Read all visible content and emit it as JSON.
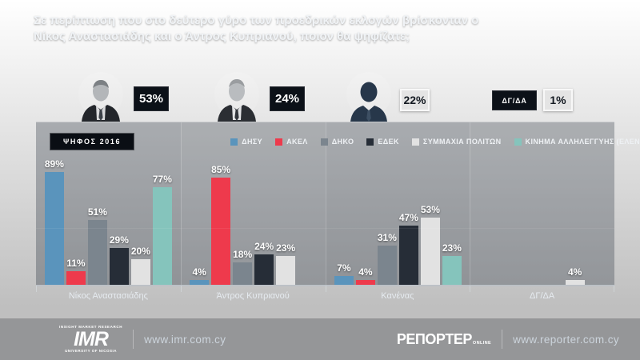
{
  "title": {
    "line1": "Σε περίπτωση που στο δεύτερο γύρο των προεδρικών εκλογών βρίσκονταν ο",
    "line2": "Νίκος Αναστασιάδης και ο Άντρος Κυπριανού, ποιον θα ψηφίζατε;"
  },
  "summary": {
    "items": [
      {
        "value": "53%",
        "style": "dark",
        "avatar": "male-portrait"
      },
      {
        "value": "24%",
        "style": "dark",
        "avatar": "male-portrait"
      },
      {
        "value": "22%",
        "style": "light",
        "avatar": "generic-silhouette"
      },
      {
        "label": "ΔΓ/ΔΑ",
        "value": "1%",
        "style": "light"
      }
    ]
  },
  "chart_data": {
    "type": "bar",
    "title": "Σε περίπτωση που στο δεύτερο γύρο των προεδρικών εκλογών βρίσκονταν ο Νίκος Αναστασιάδης και ο Άντρος Κυπριανού, ποιον θα ψηφίζατε;",
    "badge": "ΨΗΦΟΣ 2016",
    "categories": [
      "Νίκος Αναστασιάδης",
      "Άντρος Κυπριανού",
      "Κανένας",
      "ΔΓ/ΔΑ"
    ],
    "series": [
      {
        "name": "ΔΗΣΥ",
        "color": "#5a94bc",
        "values": [
          89,
          4,
          7,
          null
        ]
      },
      {
        "name": "ΑΚΕΛ",
        "color": "#ee3a4c",
        "values": [
          11,
          85,
          4,
          null
        ]
      },
      {
        "name": "ΔΗΚΟ",
        "color": "#7b858e",
        "values": [
          51,
          18,
          31,
          null
        ]
      },
      {
        "name": "ΕΔΕΚ",
        "color": "#262d37",
        "values": [
          29,
          24,
          47,
          null
        ]
      },
      {
        "name": "ΣΥΜΜΑΧΙΑ ΠΟΛΙΤΩΝ",
        "color": "#e2e2e2",
        "values": [
          20,
          23,
          53,
          4
        ]
      },
      {
        "name": "ΚΙΝΗΜΑ ΑΛΛΗΛΕΓΓΥΗΣ (ΕΛΕΝΗ ΘΕΟΧΑΡΟΥΣ)",
        "color": "#85c4bc",
        "values": [
          77,
          null,
          23,
          null
        ]
      }
    ],
    "value_suffix": "%",
    "ylim": [
      0,
      100
    ],
    "legend_position": "top",
    "grid": "single-faint-line"
  },
  "footer": {
    "left": {
      "logo_top": "INSIGHT MARKET RESEARCH",
      "logo_main": "IMR",
      "logo_bottom": "UNIVERSITY OF NICOSIA",
      "url": "www.imr.com.cy"
    },
    "right": {
      "logo_main": "ΡΕΠΟΡΤΕΡ",
      "logo_suffix": "ONLINE",
      "url": "www.reporter.com.cy"
    }
  },
  "colors": {
    "background_top": "#506b86",
    "background_bottom": "#101a29",
    "badge_dark_bg": "#0c1118",
    "badge_light_bg": "#e4e4e4",
    "text": "#f0f3f6"
  }
}
